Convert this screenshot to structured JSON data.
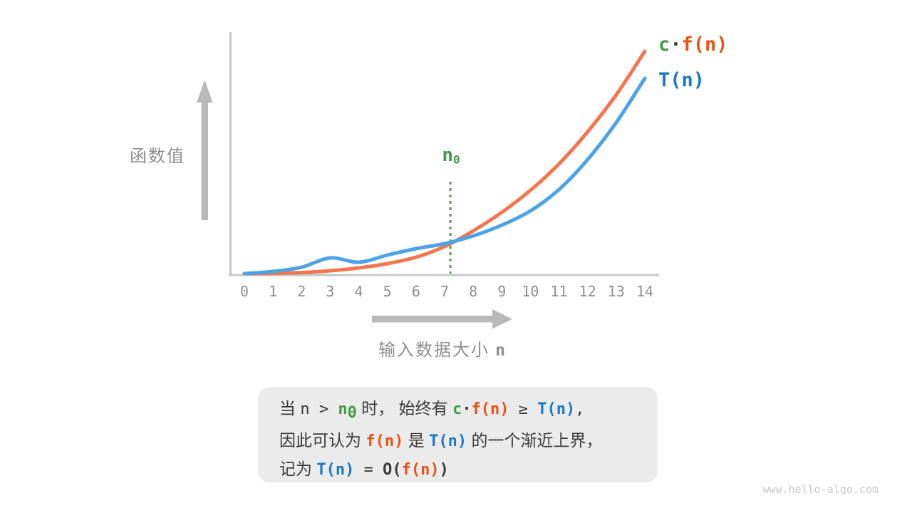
{
  "title_semantic": "asymptotic-upper-bound-figure",
  "colors": {
    "orange_curve": "#f3764e",
    "blue_curve": "#4ba3e8",
    "orange_text": "#e95413",
    "blue_text": "#1879c9",
    "green_text": "#459a49",
    "green_dotted": "#67aa6a",
    "gray_axis": "#c5c5c5",
    "gray_arrow": "#b9b9b9",
    "gray_label": "#8f8f8f",
    "box_bg": "#ebebeb",
    "dark_text": "#3b3b3b",
    "watermark": "#c9c9c9",
    "page_bg": "#ffffff"
  },
  "chart_data": {
    "type": "line",
    "x": [
      0,
      1,
      2,
      3,
      4,
      5,
      6,
      7,
      8,
      9,
      10,
      11,
      12,
      13,
      14
    ],
    "x_ticks": [
      "0",
      "1",
      "2",
      "3",
      "4",
      "5",
      "6",
      "7",
      "8",
      "9",
      "10",
      "11",
      "12",
      "13",
      "14"
    ],
    "series": [
      {
        "name": "c·f(n)",
        "color_key": "orange_curve",
        "values": [
          0,
          0.4,
          1.5,
          4,
          8,
          14,
          23,
          38,
          60,
          86,
          117,
          154,
          199,
          251,
          312
        ]
      },
      {
        "name": "T(n)",
        "color_key": "blue_curve",
        "values": [
          0,
          3,
          9,
          22,
          16,
          26,
          35,
          42,
          53,
          68,
          88,
          118,
          160,
          212,
          274
        ]
      }
    ],
    "value_units": "relative function value (arbitrary units)",
    "ylim": [
      0,
      330
    ],
    "xlabel_cjk": "输入数据大小",
    "xlabel_var": "n",
    "ylabel": "函数值",
    "grid": false,
    "legend_position": "top-right",
    "crossover_n": 7.2,
    "crossover_label": {
      "base": "n",
      "sub": "0"
    }
  },
  "legend": {
    "entries": [
      {
        "name": "c-f-n",
        "parts": [
          {
            "t": "c",
            "c": "green"
          },
          {
            "t": "·",
            "c": "dark"
          },
          {
            "t": "f(n)",
            "c": "orange"
          }
        ]
      },
      {
        "name": "t-n",
        "parts": [
          {
            "t": "T(n)",
            "c": "blue"
          }
        ]
      }
    ]
  },
  "caption": {
    "lines": [
      [
        {
          "t": "当 ",
          "c": "dark"
        },
        {
          "t": "n",
          "c": "dark",
          "m": 1
        },
        {
          "t": " > ",
          "c": "dark",
          "m": 1
        },
        {
          "t": "n",
          "c": "green",
          "m": 1,
          "b": 1
        },
        {
          "t": "0",
          "c": "green",
          "m": 1,
          "b": 1,
          "sub": 1
        },
        {
          "t": " 时， 始终有 ",
          "c": "dark"
        },
        {
          "t": "c",
          "c": "green",
          "m": 1,
          "b": 1
        },
        {
          "t": "·",
          "c": "dark",
          "m": 1,
          "b": 1
        },
        {
          "t": "f(n)",
          "c": "orange",
          "m": 1,
          "b": 1
        },
        {
          "t": " ≥ ",
          "c": "dark",
          "m": 1
        },
        {
          "t": "T(n)",
          "c": "blue",
          "m": 1,
          "b": 1
        },
        {
          "t": ",",
          "c": "dark",
          "m": 1
        }
      ],
      [
        {
          "t": "因此可认为 ",
          "c": "dark"
        },
        {
          "t": "f(n)",
          "c": "orange",
          "m": 1,
          "b": 1
        },
        {
          "t": " 是 ",
          "c": "dark"
        },
        {
          "t": "T(n)",
          "c": "blue",
          "m": 1,
          "b": 1
        },
        {
          "t": " 的一个渐近上界，",
          "c": "dark"
        }
      ],
      [
        {
          "t": "记为 ",
          "c": "dark"
        },
        {
          "t": "T(n)",
          "c": "blue",
          "m": 1,
          "b": 1
        },
        {
          "t": " = ",
          "c": "dark",
          "m": 1
        },
        {
          "t": "O(",
          "c": "dark",
          "m": 1,
          "b": 1
        },
        {
          "t": "f(n)",
          "c": "orange",
          "m": 1,
          "b": 1
        },
        {
          "t": ")",
          "c": "dark",
          "m": 1,
          "b": 1
        }
      ]
    ]
  },
  "watermark": "www.hello-algo.com"
}
